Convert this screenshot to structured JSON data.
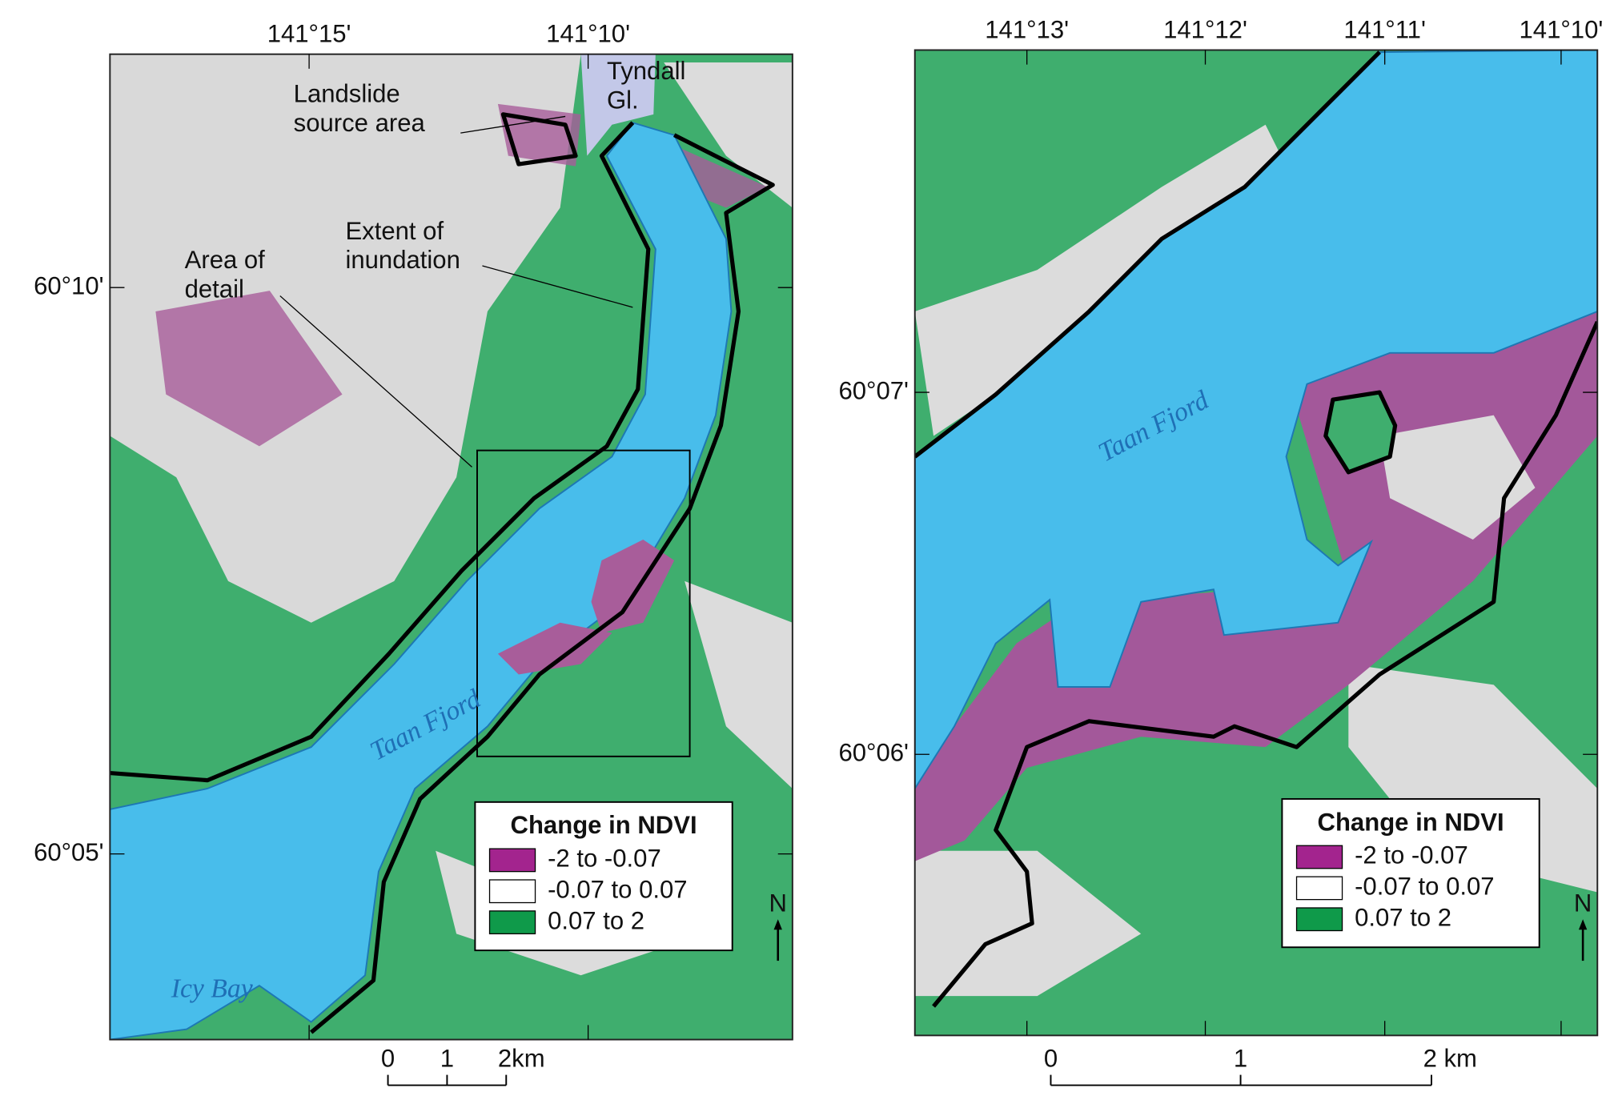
{
  "left_map": {
    "longitude_labels": [
      "141°15'",
      "141°10'"
    ],
    "latitude_labels": [
      "60°10'",
      "60°05'"
    ],
    "annotations": {
      "glacier": [
        "Tyndall",
        "Gl."
      ],
      "landslide": [
        "Landslide",
        "source area"
      ],
      "inundation": [
        "Extent of",
        "inundation"
      ],
      "detail": [
        "Area of",
        "detail"
      ],
      "fjord": "Taan Fjord",
      "bay": "Icy Bay"
    },
    "legend": {
      "title": "Change in NDVI",
      "items": [
        {
          "label": "-2 to -0.07",
          "color": "#a3248e"
        },
        {
          "label": "-0.07 to 0.07",
          "color": "#ffffff"
        },
        {
          "label": "0.07 to 2",
          "color": "#0f9a4a"
        }
      ]
    },
    "scale_bar": [
      "0",
      "1",
      "2km"
    ],
    "north": "N"
  },
  "right_map": {
    "longitude_labels": [
      "141°13'",
      "141°12'",
      "141°11'",
      "141°10'"
    ],
    "latitude_labels": [
      "60°07'",
      "60°06'"
    ],
    "annotations": {
      "fjord": "Taan Fjord"
    },
    "legend": {
      "title": "Change in NDVI",
      "items": [
        {
          "label": "-2 to -0.07",
          "color": "#a3248e"
        },
        {
          "label": "-0.07 to 0.07",
          "color": "#ffffff"
        },
        {
          "label": "0.07 to 2",
          "color": "#0f9a4a"
        }
      ]
    },
    "scale_bar": [
      "0",
      "1",
      "2 km"
    ],
    "north": "N"
  }
}
